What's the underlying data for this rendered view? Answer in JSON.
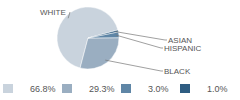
{
  "chart_data": {
    "type": "pie",
    "categories": [
      "WHITE",
      "BLACK",
      "HISPANIC",
      "ASIAN"
    ],
    "values": [
      66.8,
      29.3,
      3.0,
      1.0
    ],
    "value_labels": [
      "66.8%",
      "29.3%",
      "3.0%",
      "1.0%"
    ],
    "colors": [
      "#c9d3dd",
      "#9aaec1",
      "#5f86a6",
      "#2f5d82"
    ],
    "legend": "bottom"
  }
}
